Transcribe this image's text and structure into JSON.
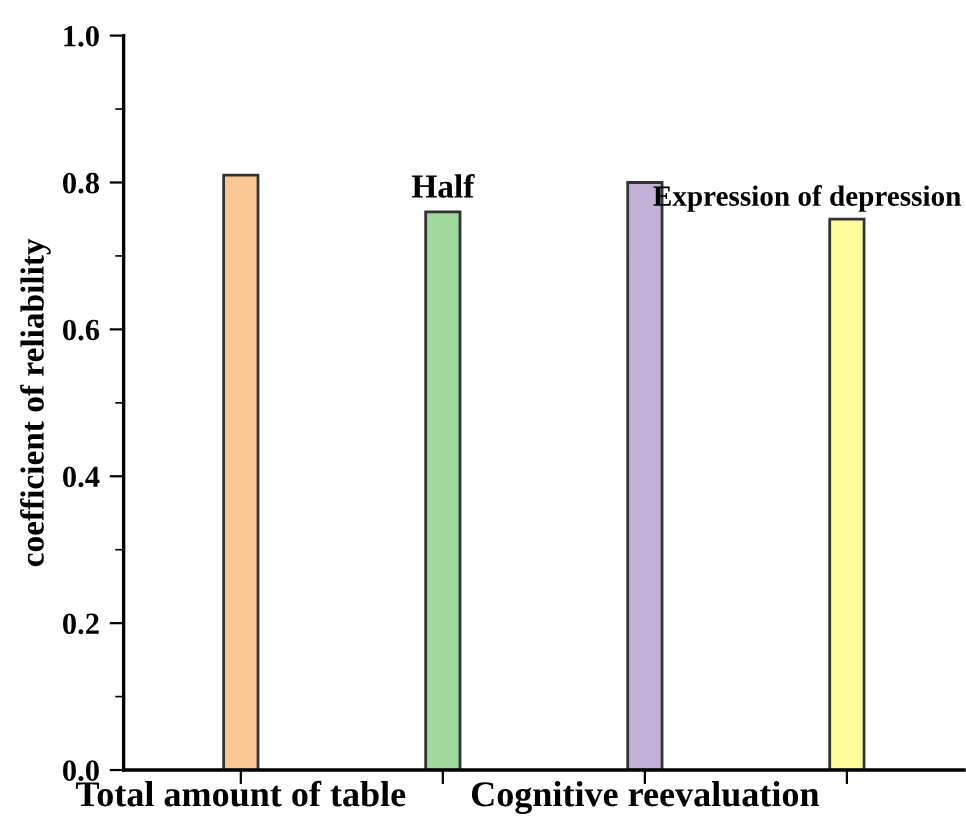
{
  "chart_data": {
    "type": "bar",
    "ylabel": "coefficient of reliability",
    "categories": [
      "Total amount of table",
      "Half",
      "Cognitive reevaluation",
      "Expression of depression"
    ],
    "values": [
      0.81,
      0.76,
      0.8,
      0.75
    ],
    "colors": [
      "#fcc896",
      "#9fd89d",
      "#c3b0d6",
      "#fdfd9c"
    ],
    "ylim": [
      0,
      1.0
    ],
    "yticks": [
      {
        "value": 0,
        "label": "0.0"
      },
      0.2,
      0.4,
      0.6,
      0.8,
      {
        "value": 1.0,
        "label": "1.0"
      }
    ],
    "grid": false,
    "legend": false
  }
}
